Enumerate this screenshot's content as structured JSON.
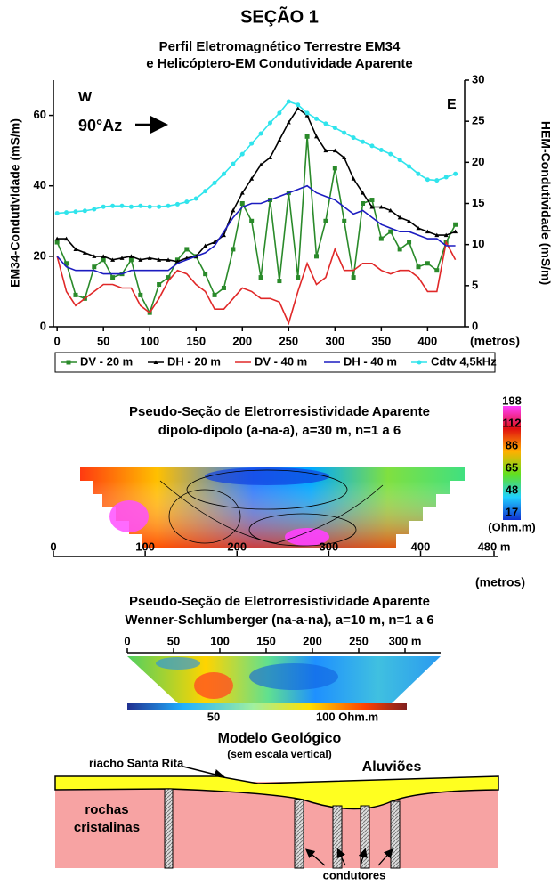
{
  "section_title": "SEÇÃO 1",
  "chart_data": {
    "type": "line",
    "title": "Perfil  Eletromagnético  Terrestre EM34",
    "subtitle": "e  Helicóptero-EM  Condutividade  Aparente",
    "x": [
      0,
      10,
      20,
      30,
      40,
      50,
      60,
      70,
      80,
      90,
      100,
      110,
      120,
      130,
      140,
      150,
      160,
      170,
      180,
      190,
      200,
      210,
      220,
      230,
      240,
      250,
      260,
      270,
      280,
      290,
      300,
      310,
      320,
      330,
      340,
      350,
      360,
      370,
      380,
      390,
      400,
      410,
      420,
      430
    ],
    "xlim": [
      -4,
      440
    ],
    "xticks": [
      0,
      50,
      100,
      150,
      200,
      250,
      300,
      350,
      400
    ],
    "x_label": "(metros)",
    "y_label": "EM34-Condutividade (mS/m)",
    "ylim": [
      0,
      70
    ],
    "yticks": [
      0,
      20,
      40,
      60
    ],
    "y2_label": "HEM-Condutividade (mS/m)",
    "y2lim": [
      0,
      30
    ],
    "y2ticks": [
      0,
      5,
      10,
      15,
      20,
      25,
      30
    ],
    "annotations": [
      "W",
      "E",
      "90°Az"
    ],
    "legend": "bottom",
    "series": [
      {
        "name": "DV - 20 m",
        "color": "#2a8a2a",
        "marker": "square",
        "values": [
          24,
          18,
          9,
          8,
          17,
          19,
          14,
          15,
          19,
          9,
          4,
          12,
          14,
          19,
          22,
          20,
          15,
          9,
          11,
          22,
          35,
          30,
          14,
          36,
          13,
          38,
          14,
          54,
          20,
          30,
          45,
          30,
          14,
          35,
          36,
          25,
          27,
          22,
          24,
          17,
          18,
          16,
          24,
          29
        ]
      },
      {
        "name": "DH - 20 m",
        "color": "#000000",
        "marker": "triangle",
        "values": [
          25,
          25,
          22,
          21,
          20,
          20,
          19,
          19.5,
          20,
          19,
          19.5,
          19,
          19,
          18.5,
          19.5,
          20,
          23,
          24,
          26,
          33,
          38,
          42,
          46,
          48,
          53,
          58,
          62,
          60,
          54,
          50,
          50,
          48,
          42,
          38,
          34,
          34,
          33,
          31,
          30,
          28,
          27,
          26,
          26,
          27
        ]
      },
      {
        "name": "DV - 40 m",
        "color": "#e02828",
        "marker": "none",
        "values": [
          20,
          10,
          6,
          8,
          10,
          12,
          12,
          11,
          11,
          6,
          4,
          8,
          13,
          16,
          15,
          12,
          10,
          5,
          5,
          8,
          11,
          10,
          8,
          8,
          7,
          1,
          10,
          18,
          12,
          14,
          22,
          16,
          16,
          18,
          18,
          16,
          15,
          16,
          16,
          14,
          10,
          10,
          24,
          19
        ]
      },
      {
        "name": "DH - 40 m",
        "color": "#1c1cc0",
        "marker": "none",
        "values": [
          20,
          17,
          16,
          16,
          16,
          15,
          15,
          15,
          16,
          16,
          16,
          16,
          16,
          18,
          19,
          20,
          21,
          23,
          27,
          31,
          34,
          35,
          35,
          36,
          37,
          38,
          39,
          40,
          38,
          37,
          36,
          34,
          32,
          33,
          31,
          29,
          28,
          27,
          27,
          26,
          25,
          25,
          23,
          23
        ]
      },
      {
        "name": "Cdtv 4,5kHz",
        "color": "#30e4ec",
        "marker": "circle",
        "axis": "y2",
        "values": [
          13.8,
          13.9,
          14,
          14.1,
          14.3,
          14.6,
          14.7,
          14.7,
          14.6,
          14.7,
          14.6,
          14.6,
          14.7,
          14.9,
          15.2,
          15.6,
          16.5,
          17.5,
          18.6,
          19.8,
          21,
          22.3,
          23.5,
          24.8,
          26,
          27.4,
          27,
          26,
          25.3,
          24.7,
          24.2,
          23.6,
          23,
          22.5,
          22,
          21.5,
          21,
          20.3,
          19.5,
          18.6,
          17.9,
          17.8,
          18.2,
          18.6
        ]
      }
    ]
  },
  "pseudo_section_1": {
    "title": "Pseudo-Seção de Eletrorresistividade Aparente",
    "subtitle": "dipolo-dipolo (a-na-a), a=30 m, n=1 a 6",
    "xlim": [
      0,
      480
    ],
    "xticks": [
      0,
      100,
      200,
      300,
      400,
      {
        "value": 480,
        "label": "480 m"
      }
    ],
    "x_label": "(metros)",
    "colorbar_ticks": [
      198,
      112,
      86,
      65,
      48,
      17
    ],
    "colorbar_unit": "(Ohm.m)"
  },
  "pseudo_section_2": {
    "title": "Pseudo-Seção de Eletrorresistividade Aparente",
    "subtitle": "Wenner-Schlumberger (na-a-na), a=10 m, n=1 a  6",
    "xlim": [
      0,
      300
    ],
    "xticks": [
      0,
      50,
      100,
      150,
      200,
      250,
      {
        "value": 300,
        "label": "300 m"
      }
    ],
    "colorbar_ticks": [
      50,
      {
        "value": 100,
        "label": "100 Ohm.m"
      }
    ]
  },
  "geological_model": {
    "title": "Modelo Geológico",
    "subtitle": "(sem escala vertical)",
    "stream": "riacho Santa Rita",
    "alluvium": "Aluviões",
    "rocks": [
      "rochas",
      "cristalinas"
    ],
    "conductors": "condutores"
  }
}
